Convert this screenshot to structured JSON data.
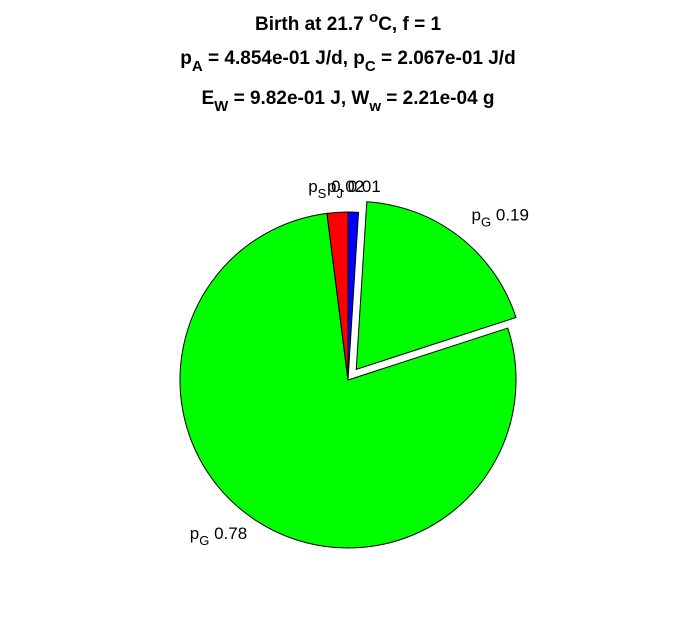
{
  "chart_data": {
    "type": "pie",
    "title": [
      [
        {
          "text": "Birth at 21.7 "
        },
        {
          "sup": "o"
        },
        {
          "text": "C, f = 1"
        }
      ],
      [
        {
          "text": "p"
        },
        {
          "sub": "A"
        },
        {
          "text": " = 4.854e-01 J/d, p"
        },
        {
          "sub": "C"
        },
        {
          "text": " = 2.067e-01 J/d"
        }
      ],
      [
        {
          "text": "E"
        },
        {
          "sub": "W"
        },
        {
          "text": " = 9.82e-01 J, W"
        },
        {
          "sub": "w"
        },
        {
          "text": " = 2.21e-04 g"
        }
      ]
    ],
    "categories": [
      {
        "text": "p",
        "sub": "J"
      },
      {
        "text": "p",
        "sub": "G"
      },
      {
        "text": "p",
        "sub": "G"
      },
      {
        "text": "p",
        "sub": "S"
      }
    ],
    "values": [
      0.01,
      0.19,
      0.78,
      0.02
    ],
    "colors": [
      "#0000ff",
      "#00ff00",
      "#00ff00",
      "#ff0000"
    ],
    "explode": [
      false,
      true,
      false,
      false
    ]
  }
}
